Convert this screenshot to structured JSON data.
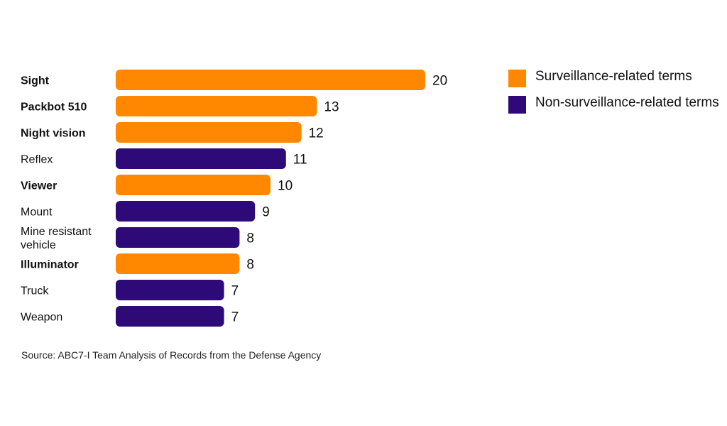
{
  "chart_data": {
    "type": "bar",
    "orientation": "horizontal",
    "categories": [
      "Sight",
      "Packbot 510",
      "Night vision",
      "Reflex",
      "Viewer",
      "Mount",
      "Mine resistant vehicle",
      "Illuminator",
      "Truck",
      "Weapon"
    ],
    "values": [
      20,
      13,
      12,
      11,
      10,
      9,
      8,
      8,
      7,
      7
    ],
    "groups": [
      "surveillance",
      "surveillance",
      "surveillance",
      "non-surveillance",
      "surveillance",
      "non-surveillance",
      "non-surveillance",
      "surveillance",
      "non-surveillance",
      "non-surveillance"
    ],
    "label_lines": [
      [
        "Sight"
      ],
      [
        "Packbot 510"
      ],
      [
        "Night vision"
      ],
      [
        "Reflex"
      ],
      [
        "Viewer"
      ],
      [
        "Mount"
      ],
      [
        "Mine resistant",
        "vehicle"
      ],
      [
        "Illuminator"
      ],
      [
        "Truck"
      ],
      [
        "Weapon"
      ]
    ],
    "bold_labels": [
      true,
      true,
      true,
      false,
      true,
      false,
      false,
      true,
      false,
      false
    ],
    "legend": [
      {
        "key": "surveillance",
        "label": "Surveillance-related terms",
        "color": "#FF8800"
      },
      {
        "key": "non-surveillance",
        "label": "Non-surveillance-related terms",
        "color": "#2E0A78"
      }
    ],
    "legend_position": "right",
    "xlim": [
      0,
      20
    ],
    "grid": false
  },
  "source": "Source: ABC7-I Team Analysis of Records from the Defense Agency"
}
